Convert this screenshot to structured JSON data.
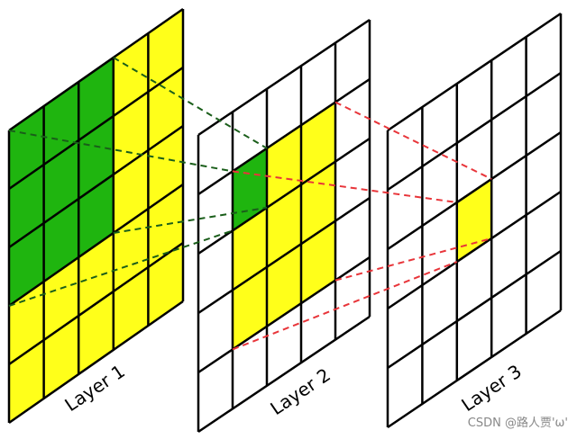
{
  "layers": [
    {
      "label": "Layer 1"
    },
    {
      "label": "Layer 2"
    },
    {
      "label": "Layer 3"
    }
  ],
  "watermark": "CSDN @路人贾'ω'"
}
